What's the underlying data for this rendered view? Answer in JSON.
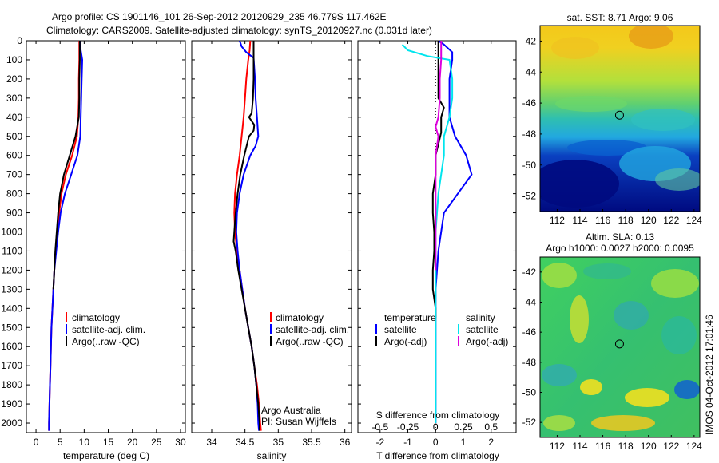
{
  "header": {
    "line1": "Argo profile: CS 1901146_101 26-Sep-2012 20120929_235 46.779S 117.462E",
    "line2": "Climatology: CARS2009. Satellite-adjusted climatology: synTS_20120927.nc (0.031d later)"
  },
  "credits": {
    "owner": "Argo Australia",
    "pi": "PI: Susan Wijffels",
    "vertical_stamp": "IMOS 04-Oct-2012 17:01:46"
  },
  "colors": {
    "climatology": "#ff0000",
    "satellite": "#0000ff",
    "argo": "#000000",
    "satellite_s": "#00e5ee",
    "argo_s": "#dd00dd"
  },
  "chart_data": [
    {
      "type": "line",
      "panel": "temperature",
      "xlabel": "temperature (deg C)",
      "ylabel": "",
      "xlim": [
        -2,
        31
      ],
      "ylim": [
        2050,
        0
      ],
      "xticks": [
        0,
        5,
        10,
        15,
        20,
        25,
        30
      ],
      "yticks": [
        0,
        100,
        200,
        300,
        400,
        500,
        600,
        700,
        800,
        900,
        1000,
        1100,
        1200,
        1300,
        1400,
        1500,
        1600,
        1700,
        1800,
        1900,
        2000
      ],
      "legend": [
        "climatology",
        "satellite-adj. clim.",
        "Argo(..raw -QC)"
      ],
      "series": [
        {
          "name": "climatology",
          "color": "#ff0000",
          "points": [
            [
              9.0,
              0
            ],
            [
              9.0,
              100
            ],
            [
              8.9,
              200
            ],
            [
              8.9,
              300
            ],
            [
              8.8,
              400
            ],
            [
              8.5,
              500
            ],
            [
              7.5,
              600
            ],
            [
              6.2,
              700
            ],
            [
              5.3,
              800
            ],
            [
              4.8,
              900
            ],
            [
              4.4,
              1000
            ],
            [
              4.1,
              1100
            ],
            [
              3.8,
              1200
            ],
            [
              3.6,
              1300
            ],
            [
              3.4,
              1400
            ],
            [
              3.2,
              1500
            ],
            [
              3.1,
              1600
            ],
            [
              3.0,
              1700
            ],
            [
              2.9,
              1800
            ],
            [
              2.8,
              1900
            ],
            [
              2.7,
              2000
            ],
            [
              2.7,
              2040
            ]
          ]
        },
        {
          "name": "satellite-adj. clim.",
          "color": "#0000ff",
          "points": [
            [
              9.1,
              0
            ],
            [
              9.3,
              50
            ],
            [
              9.6,
              100
            ],
            [
              9.5,
              200
            ],
            [
              9.4,
              300
            ],
            [
              9.3,
              400
            ],
            [
              9.2,
              500
            ],
            [
              8.6,
              600
            ],
            [
              7.3,
              700
            ],
            [
              6.0,
              800
            ],
            [
              5.1,
              900
            ],
            [
              4.6,
              1000
            ],
            [
              4.2,
              1100
            ],
            [
              3.8,
              1200
            ],
            [
              3.6,
              1300
            ],
            [
              3.4,
              1400
            ],
            [
              3.2,
              1500
            ],
            [
              3.1,
              1600
            ],
            [
              3.0,
              1700
            ],
            [
              2.9,
              1800
            ],
            [
              2.8,
              1900
            ],
            [
              2.7,
              2000
            ],
            [
              2.7,
              2040
            ]
          ]
        },
        {
          "name": "Argo(..raw -QC)",
          "color": "#000000",
          "points": [
            [
              9.1,
              0
            ],
            [
              9.1,
              100
            ],
            [
              9.0,
              200
            ],
            [
              9.0,
              300
            ],
            [
              8.9,
              400
            ],
            [
              8.2,
              500
            ],
            [
              7.0,
              600
            ],
            [
              5.8,
              700
            ],
            [
              5.0,
              800
            ],
            [
              4.6,
              900
            ],
            [
              4.3,
              1000
            ],
            [
              4.0,
              1100
            ],
            [
              3.8,
              1200
            ],
            [
              3.6,
              1300
            ]
          ]
        }
      ]
    },
    {
      "type": "line",
      "panel": "salinity",
      "xlabel": "salinity",
      "ylabel": "",
      "xlim": [
        33.7,
        36.1
      ],
      "ylim": [
        2050,
        0
      ],
      "xticks": [
        34,
        34.5,
        35,
        35.5,
        36
      ],
      "legend": [
        "climatology",
        "satellite-adj. clim.",
        "Argo(..raw -QC)"
      ],
      "series": [
        {
          "name": "climatology",
          "color": "#ff0000",
          "points": [
            [
              34.58,
              0
            ],
            [
              34.57,
              50
            ],
            [
              34.55,
              100
            ],
            [
              34.52,
              200
            ],
            [
              34.5,
              300
            ],
            [
              34.48,
              400
            ],
            [
              34.45,
              500
            ],
            [
              34.42,
              600
            ],
            [
              34.38,
              700
            ],
            [
              34.35,
              800
            ],
            [
              34.34,
              900
            ],
            [
              34.35,
              1000
            ],
            [
              34.38,
              1100
            ],
            [
              34.42,
              1200
            ],
            [
              34.46,
              1300
            ],
            [
              34.5,
              1400
            ],
            [
              34.55,
              1500
            ],
            [
              34.6,
              1600
            ],
            [
              34.64,
              1700
            ],
            [
              34.68,
              1800
            ],
            [
              34.71,
              1900
            ],
            [
              34.73,
              2000
            ],
            [
              34.74,
              2040
            ]
          ]
        },
        {
          "name": "satellite-adj. clim.",
          "color": "#0000ff",
          "points": [
            [
              34.42,
              0
            ],
            [
              34.45,
              30
            ],
            [
              34.52,
              60
            ],
            [
              34.63,
              90
            ],
            [
              34.65,
              200
            ],
            [
              34.66,
              300
            ],
            [
              34.68,
              400
            ],
            [
              34.7,
              500
            ],
            [
              34.66,
              550
            ],
            [
              34.58,
              600
            ],
            [
              34.48,
              700
            ],
            [
              34.42,
              800
            ],
            [
              34.38,
              900
            ],
            [
              34.37,
              1000
            ],
            [
              34.39,
              1100
            ],
            [
              34.42,
              1200
            ],
            [
              34.46,
              1300
            ],
            [
              34.5,
              1400
            ],
            [
              34.55,
              1500
            ],
            [
              34.6,
              1600
            ],
            [
              34.64,
              1700
            ],
            [
              34.67,
              1800
            ],
            [
              34.69,
              1900
            ],
            [
              34.7,
              2000
            ],
            [
              34.71,
              2040
            ]
          ]
        },
        {
          "name": "Argo(..raw -QC)",
          "color": "#000000",
          "points": [
            [
              34.63,
              0
            ],
            [
              34.63,
              100
            ],
            [
              34.63,
              200
            ],
            [
              34.62,
              300
            ],
            [
              34.6,
              380
            ],
            [
              34.56,
              400
            ],
            [
              34.6,
              420
            ],
            [
              34.64,
              440
            ],
            [
              34.63,
              470
            ],
            [
              34.56,
              500
            ],
            [
              34.49,
              600
            ],
            [
              34.43,
              700
            ],
            [
              34.39,
              800
            ],
            [
              34.36,
              900
            ],
            [
              34.34,
              1000
            ],
            [
              34.33,
              1050
            ],
            [
              34.36,
              1100
            ],
            [
              34.4,
              1200
            ],
            [
              34.45,
              1300
            ],
            [
              34.5,
              1400
            ],
            [
              34.55,
              1500
            ],
            [
              34.6,
              1600
            ],
            [
              34.64,
              1700
            ],
            [
              34.67,
              1800
            ],
            [
              34.7,
              1900
            ],
            [
              34.72,
              2000
            ],
            [
              34.72,
              2040
            ]
          ]
        }
      ]
    },
    {
      "type": "line",
      "panel": "difference",
      "xlabel": "T difference from climatology",
      "xlabel_top": "S difference from climatology",
      "ylabel": "",
      "xlim": [
        -2.8,
        2.9
      ],
      "xticks": [
        -2,
        -1,
        0,
        1,
        2
      ],
      "xticks_s": [
        "-0.5",
        "-0.25",
        "0",
        "0.25",
        "0.5"
      ],
      "ylim": [
        2050,
        0
      ],
      "legend_headers": [
        "temperature",
        "salinity"
      ],
      "legend": [
        "satellite",
        "Argo(-adj)",
        "satellite",
        "Argo(-adj)"
      ],
      "series": [
        {
          "name": "satellite",
          "color": "#0000ff",
          "points": [
            [
              0.1,
              0
            ],
            [
              0.3,
              20
            ],
            [
              0.6,
              60
            ],
            [
              0.6,
              100
            ],
            [
              0.5,
              200
            ],
            [
              0.5,
              300
            ],
            [
              0.5,
              400
            ],
            [
              0.7,
              500
            ],
            [
              1.1,
              600
            ],
            [
              1.3,
              700
            ],
            [
              0.8,
              800
            ],
            [
              0.3,
              900
            ],
            [
              0.2,
              1000
            ],
            [
              0.1,
              1100
            ],
            [
              0.05,
              1200
            ],
            [
              0,
              1300
            ],
            [
              0,
              1400
            ],
            [
              0,
              1500
            ],
            [
              0,
              1600
            ],
            [
              0,
              1700
            ],
            [
              0,
              1800
            ],
            [
              0,
              1900
            ],
            [
              0,
              2000
            ]
          ]
        },
        {
          "name": "Argo(-adj)",
          "color": "#000000",
          "points": [
            [
              0.1,
              0
            ],
            [
              0.1,
              100
            ],
            [
              0.1,
              200
            ],
            [
              0.1,
              300
            ],
            [
              0.3,
              350
            ],
            [
              0.2,
              400
            ],
            [
              0.2,
              480
            ],
            [
              0,
              600
            ],
            [
              0,
              700
            ],
            [
              -0.1,
              800
            ],
            [
              -0.1,
              900
            ],
            [
              -0.05,
              1000
            ],
            [
              -0.05,
              1100
            ],
            [
              -0.1,
              1200
            ],
            [
              -0.1,
              1300
            ],
            [
              0,
              1400
            ],
            [
              0,
              1450
            ]
          ]
        },
        {
          "name": "satellite",
          "color": "#00e5ee",
          "points": [
            [
              -1.2,
              20
            ],
            [
              -1.0,
              50
            ],
            [
              -0.3,
              80
            ],
            [
              0.5,
              100
            ],
            [
              0.6,
              200
            ],
            [
              0.6,
              300
            ],
            [
              0.5,
              400
            ],
            [
              0.3,
              500
            ],
            [
              0.3,
              600
            ],
            [
              0.2,
              700
            ],
            [
              0.1,
              800
            ],
            [
              0.05,
              900
            ],
            [
              0,
              1000
            ],
            [
              0,
              1100
            ],
            [
              0,
              1200
            ],
            [
              0,
              1400
            ],
            [
              0,
              1600
            ],
            [
              0,
              1800
            ],
            [
              0,
              2000
            ]
          ]
        },
        {
          "name": "Argo(-adj)",
          "color": "#dd00dd",
          "points": [
            [
              0.2,
              0
            ],
            [
              0.2,
              100
            ],
            [
              0.15,
              200
            ],
            [
              0.15,
              300
            ],
            [
              0.1,
              400
            ],
            [
              0,
              450
            ],
            [
              0.1,
              500
            ],
            [
              0,
              600
            ],
            [
              0,
              700
            ],
            [
              0,
              800
            ],
            [
              0,
              900
            ],
            [
              0,
              1000
            ],
            [
              0,
              1100
            ],
            [
              0,
              1200
            ]
          ]
        }
      ]
    },
    {
      "type": "heatmap",
      "panel": "sst_map",
      "title": "sat. SST: 8.71  Argo: 9.06",
      "xticks": [
        112,
        114,
        116,
        118,
        120,
        122,
        124
      ],
      "yticks": [
        -42,
        -44,
        -46,
        -48,
        -50,
        -52
      ],
      "xlim": [
        110.5,
        124.5
      ],
      "ylim": [
        -53,
        -41
      ],
      "marker": [
        117.462,
        -46.779
      ]
    },
    {
      "type": "heatmap",
      "panel": "sla_map",
      "title": "Altim. SLA: 0.13",
      "subtitle": "Argo h1000: 0.0027 h2000: 0.0095",
      "xticks": [
        112,
        114,
        116,
        118,
        120,
        122,
        124
      ],
      "yticks": [
        -42,
        -44,
        -46,
        -48,
        -50,
        -52
      ],
      "xlim": [
        110.5,
        124.5
      ],
      "ylim": [
        -53,
        -41
      ],
      "marker": [
        117.462,
        -46.779
      ]
    }
  ]
}
